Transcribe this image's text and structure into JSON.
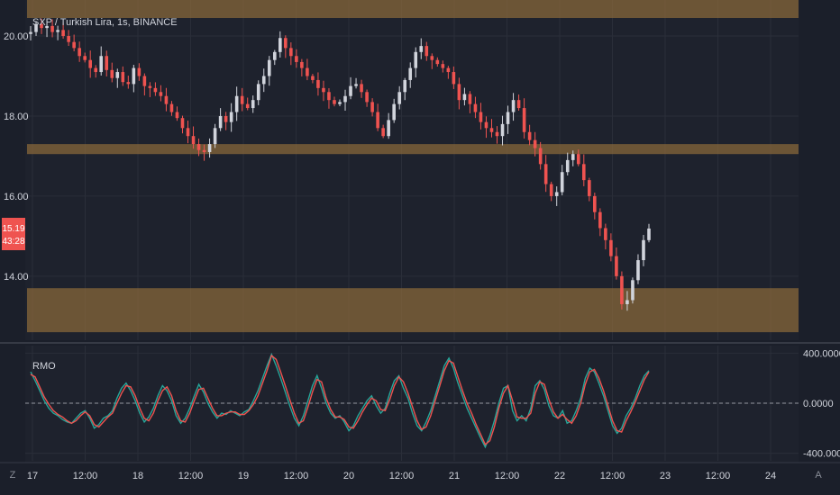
{
  "header": {
    "symbol_title": "SXP / Turkish Lira, 1s, BINANCE"
  },
  "indicator": {
    "name": "RMO"
  },
  "last_price": {
    "value": "15.19",
    "countdown": "43:28",
    "color": "#ef5350"
  },
  "controls": {
    "left_button": "Z",
    "right_button": "A"
  },
  "colors": {
    "up": "#d1d4dc",
    "down": "#ef5350",
    "zone": "#8a6a3a",
    "rmo_line1": "#26a69a",
    "rmo_line2": "#ef5350"
  },
  "chart_data": [
    {
      "type": "candlestick",
      "title": "SXP / Turkish Lira, 1s, BINANCE",
      "y_ticks": [
        "20.00",
        "18.00",
        "16.00",
        "14.00"
      ],
      "x_ticks": [
        "17",
        "12:00",
        "18",
        "12:00",
        "19",
        "12:00",
        "20",
        "12:00",
        "21",
        "12:00",
        "22",
        "12:00",
        "23",
        "12:00",
        "24"
      ],
      "ylim": [
        12.4,
        20.9
      ],
      "zones": [
        {
          "from": 20.45,
          "to": 21.25
        },
        {
          "from": 17.05,
          "to": 17.3
        },
        {
          "from": 12.6,
          "to": 13.7
        }
      ],
      "close_path": [
        20.1,
        20.3,
        20.2,
        20.25,
        20.1,
        20.15,
        20.0,
        19.85,
        19.7,
        19.5,
        19.4,
        19.2,
        19.1,
        19.5,
        19.15,
        18.95,
        19.1,
        18.85,
        18.8,
        19.2,
        19.0,
        18.75,
        18.7,
        18.6,
        18.5,
        18.3,
        18.1,
        17.95,
        17.7,
        17.5,
        17.3,
        17.15,
        17.1,
        17.3,
        17.7,
        18.0,
        17.85,
        18.1,
        18.5,
        18.3,
        18.2,
        18.4,
        18.8,
        19.0,
        19.4,
        19.6,
        19.95,
        19.7,
        19.5,
        19.35,
        19.2,
        19.0,
        18.9,
        18.7,
        18.6,
        18.4,
        18.3,
        18.35,
        18.5,
        18.75,
        18.8,
        18.6,
        18.35,
        18.1,
        17.7,
        17.5,
        17.9,
        18.3,
        18.6,
        18.9,
        19.2,
        19.6,
        19.75,
        19.5,
        19.4,
        19.3,
        19.2,
        19.1,
        18.8,
        18.4,
        18.55,
        18.3,
        18.1,
        17.85,
        17.7,
        17.6,
        17.5,
        17.8,
        18.1,
        18.4,
        18.2,
        17.6,
        17.4,
        17.2,
        16.8,
        16.3,
        16.0,
        16.1,
        16.6,
        16.9,
        17.05,
        16.8,
        16.4,
        16.0,
        15.6,
        15.2,
        14.9,
        14.5,
        14.0,
        13.3,
        13.4,
        13.9,
        14.4,
        14.9,
        15.19
      ]
    },
    {
      "type": "line",
      "title": "RMO",
      "y_ticks": [
        "400.0000",
        "0.0000",
        "-400.0000"
      ],
      "ylim": [
        -460,
        460
      ],
      "zero_line": 0,
      "series": [
        {
          "values": [
            250,
            180,
            100,
            20,
            -40,
            -80,
            -100,
            -130,
            -150,
            -160,
            -120,
            -80,
            -60,
            -120,
            -200,
            -170,
            -120,
            -100,
            -60,
            40,
            120,
            160,
            100,
            20,
            -80,
            -150,
            -110,
            -40,
            60,
            140,
            100,
            20,
            -100,
            -160,
            -120,
            -40,
            60,
            150,
            90,
            0,
            -70,
            -120,
            -80,
            -90,
            -60,
            -80,
            -100,
            -70,
            -50,
            20,
            100,
            200,
            300,
            390,
            300,
            200,
            90,
            -20,
            -120,
            -180,
            -100,
            20,
            140,
            220,
            120,
            0,
            -80,
            -120,
            -100,
            -150,
            -220,
            -180,
            -100,
            -40,
            20,
            60,
            -20,
            -80,
            -40,
            80,
            180,
            220,
            120,
            40,
            -80,
            -180,
            -220,
            -150,
            -60,
            60,
            180,
            300,
            360,
            280,
            160,
            60,
            -40,
            -120,
            -200,
            -280,
            -350,
            -260,
            -140,
            0,
            120,
            140,
            -60,
            -140,
            -100,
            -140,
            -40,
            140,
            180,
            110,
            -20,
            -100,
            -120,
            -60,
            -160,
            -140,
            -60,
            40,
            200,
            280,
            250,
            160,
            60,
            -60,
            -180,
            -240,
            -200,
            -100,
            -40,
            40,
            140,
            220,
            260
          ]
        },
        {
          "values": [
            230,
            210,
            130,
            50,
            -10,
            -60,
            -90,
            -110,
            -140,
            -160,
            -140,
            -100,
            -70,
            -100,
            -170,
            -190,
            -150,
            -110,
            -80,
            0,
            80,
            140,
            130,
            60,
            -40,
            -120,
            -140,
            -80,
            20,
            100,
            130,
            60,
            -60,
            -140,
            -150,
            -80,
            20,
            110,
            120,
            40,
            -40,
            -100,
            -100,
            -80,
            -70,
            -70,
            -90,
            -90,
            -60,
            -10,
            60,
            160,
            260,
            380,
            350,
            250,
            140,
            30,
            -80,
            -160,
            -140,
            -30,
            90,
            190,
            170,
            40,
            -50,
            -110,
            -110,
            -130,
            -190,
            -200,
            -140,
            -70,
            -10,
            40,
            20,
            -50,
            -60,
            30,
            140,
            210,
            170,
            80,
            -30,
            -140,
            -210,
            -190,
            -100,
            20,
            140,
            260,
            340,
            320,
            210,
            100,
            0,
            -80,
            -170,
            -250,
            -330,
            -300,
            -190,
            -40,
            80,
            140,
            20,
            -110,
            -120,
            -120,
            -80,
            80,
            170,
            150,
            30,
            -70,
            -120,
            -90,
            -130,
            -160,
            -100,
            0,
            150,
            250,
            270,
            200,
            100,
            -20,
            -140,
            -220,
            -230,
            -140,
            -70,
            10,
            100,
            190,
            250
          ]
        }
      ]
    }
  ]
}
